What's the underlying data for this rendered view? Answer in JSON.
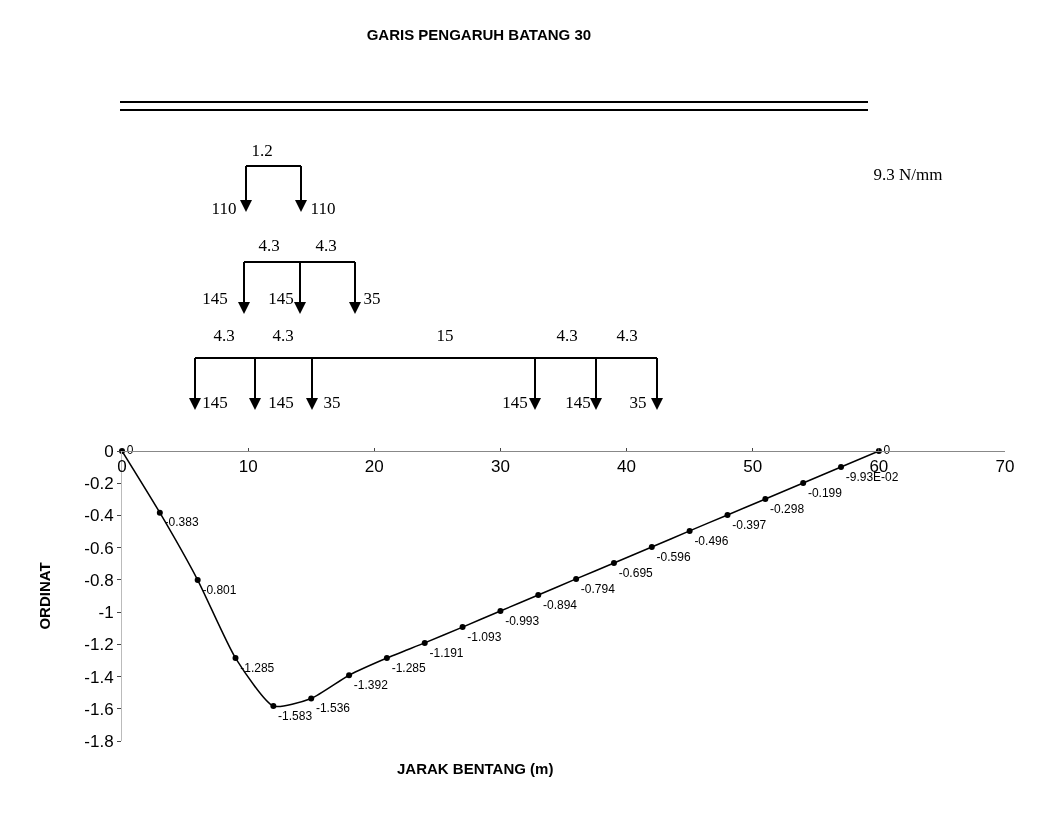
{
  "chart_data": {
    "type": "line",
    "title": "GARIS PENGARUH BATANG 30",
    "xlabel": "JARAK BENTANG (m)",
    "ylabel": "ORDINAT",
    "x": [
      0,
      3,
      6,
      9,
      12,
      15,
      18,
      21,
      24,
      27,
      30,
      33,
      36,
      39,
      42,
      45,
      48,
      51,
      54,
      57,
      60
    ],
    "series": [
      {
        "color": "#000000",
        "values": [
          0,
          -0.383,
          -0.801,
          -1.285,
          -1.583,
          -1.536,
          -1.392,
          -1.285,
          -1.191,
          -1.093,
          -0.993,
          -0.894,
          -0.794,
          -0.695,
          -0.596,
          -0.496,
          -0.397,
          -0.298,
          -0.199,
          -0.0993,
          0
        ],
        "value_labels": [
          "0",
          "-0.383",
          "-0.801",
          "-1.285",
          "-1.583",
          "-1.536",
          "-1.392",
          "-1.285",
          "-1.191",
          "-1.093",
          "-0.993",
          "-0.894",
          "-0.794",
          "-0.695",
          "-0.596",
          "-0.496",
          "-0.397",
          "-0.298",
          "-0.199",
          "-9.93E-02",
          "0"
        ]
      }
    ],
    "xlim": [
      0,
      70
    ],
    "xticks": [
      0,
      10,
      20,
      30,
      40,
      50,
      60,
      70
    ],
    "ylim": [
      -1.8,
      0
    ],
    "yticks": [
      0,
      -0.2,
      -0.4,
      -0.6,
      -0.8,
      -1,
      -1.2,
      -1.4,
      -1.6,
      -1.8
    ],
    "grid": false,
    "marker": "circle",
    "line_style": "solid",
    "annotations": [
      "1.2",
      "110",
      "110",
      "4.3",
      "4.3",
      "145",
      "145",
      "35",
      "4.3",
      "4.3",
      "15",
      "4.3",
      "4.3",
      "145",
      "145",
      "35",
      "145",
      "145",
      "35",
      "9.3 N/mm"
    ]
  }
}
